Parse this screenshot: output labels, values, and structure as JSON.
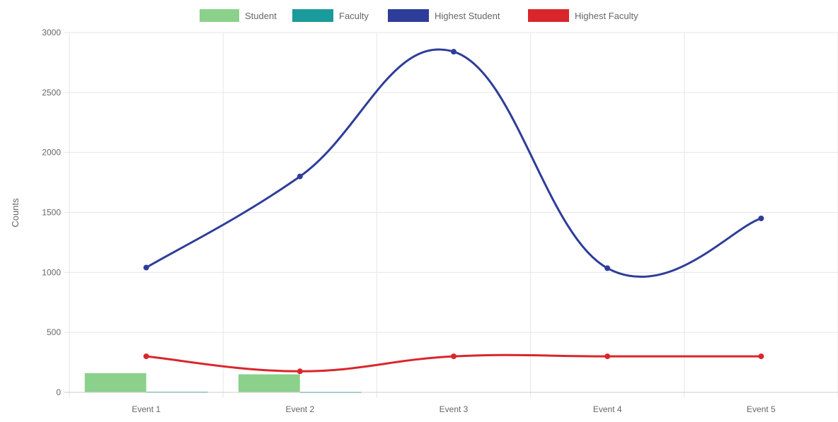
{
  "chart_data": {
    "type": "bar",
    "categories": [
      "Event 1",
      "Event 2",
      "Event 3",
      "Event 4",
      "Event 5"
    ],
    "ylabel": "Counts",
    "ylim": [
      0,
      3000
    ],
    "yticks": [
      0,
      500,
      1000,
      1500,
      2000,
      2500,
      3000
    ],
    "grid": true,
    "legend_position": "top-center",
    "series": [
      {
        "name": "Student",
        "kind": "bar",
        "color": "#8bd18b",
        "values": [
          160,
          150,
          0,
          0,
          0
        ]
      },
      {
        "name": "Faculty",
        "kind": "bar",
        "color": "#1a9a9a",
        "values": [
          5,
          4,
          0,
          0,
          0
        ]
      },
      {
        "name": "Highest Student",
        "kind": "line",
        "color": "#2e3d9a",
        "values": [
          1040,
          1800,
          2840,
          1035,
          1450
        ]
      },
      {
        "name": "Highest Faculty",
        "kind": "line",
        "color": "#d9262b",
        "values": [
          300,
          175,
          300,
          300,
          300
        ]
      }
    ]
  }
}
